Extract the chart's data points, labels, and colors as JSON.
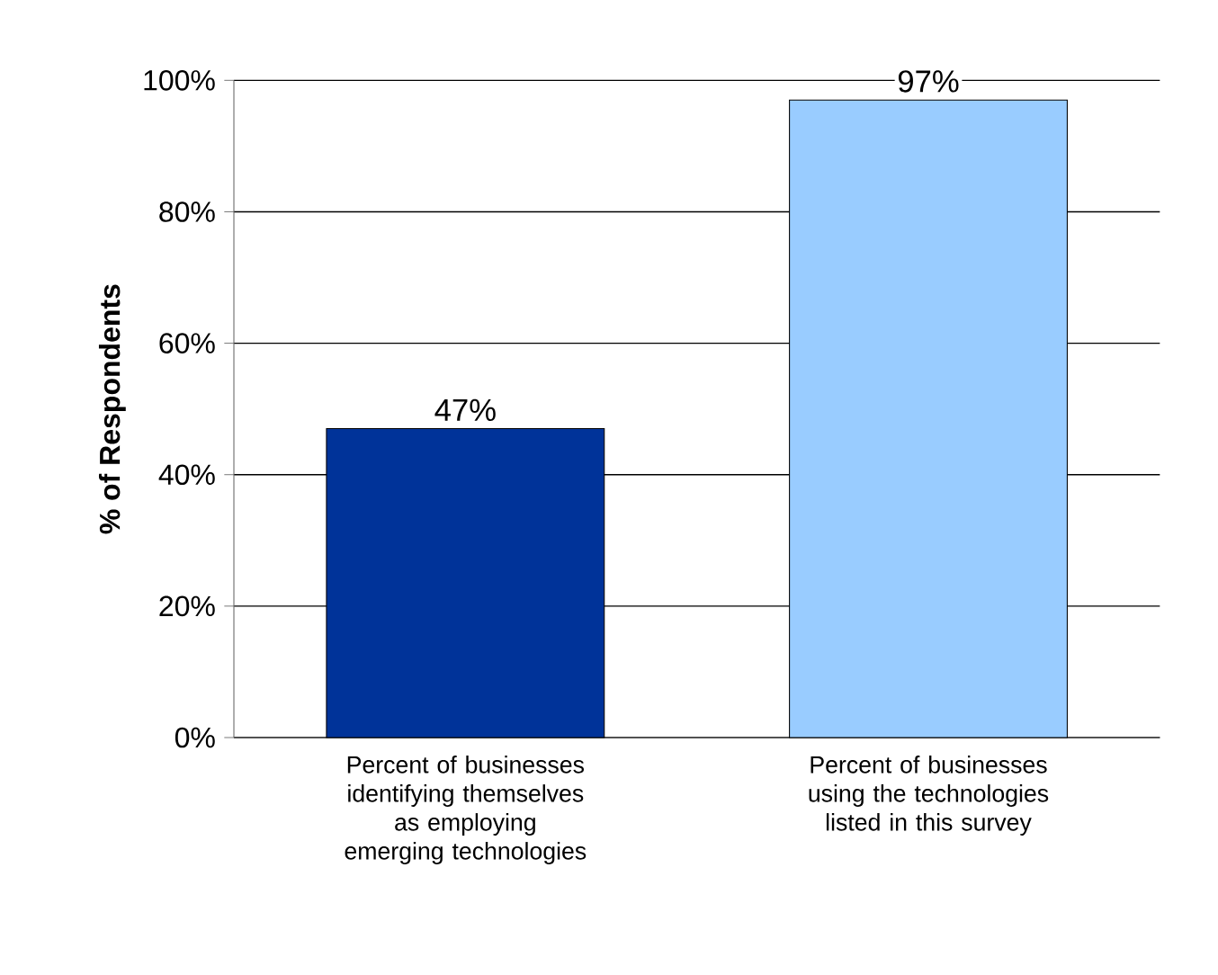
{
  "chart_data": {
    "type": "bar",
    "ylabel": "**% of Respondents**",
    "categories": [
      "Percent of businesses identifying themselves as employing emerging technologies",
      "Percent of businesses using the technologies listed in this survey"
    ],
    "values": [
      47,
      97
    ],
    "colors": [
      "#003399",
      "#99ccff"
    ],
    "value_labels": [
      "47%",
      "97%"
    ],
    "ylim": [
      0,
      100
    ],
    "yticks": [
      {
        "value": 0,
        "label": "0%"
      },
      {
        "value": 20,
        "label": "20%"
      },
      {
        "value": 40,
        "label": "40%"
      },
      {
        "value": 60,
        "label": "60%"
      },
      {
        "value": 80,
        "label": "80%"
      },
      {
        "value": 100,
        "label": "100%"
      }
    ],
    "grid": "y"
  }
}
